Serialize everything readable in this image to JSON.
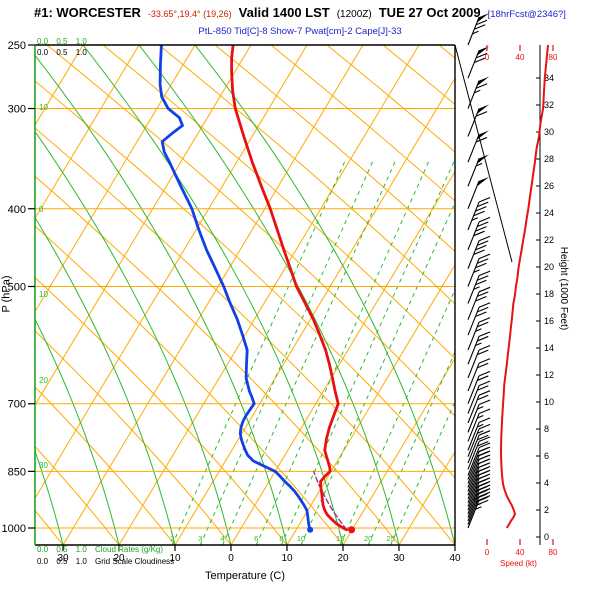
{
  "header": {
    "station": "#1: WORCESTER",
    "coords": "-33.65°,19.4° (19,26)",
    "valid": "Valid 1400 LST",
    "valid_z": "(1200Z)",
    "date": "TUE 27 Oct 2009",
    "fcst_tag": "[18hrFcst@2346?]",
    "indices": "PtL-850  Tid[C]-8  Show-7  Pwat[cm]-2  Cape[J]-33"
  },
  "labels": {
    "pressure_axis": "P (hPa)",
    "temperature_axis": "Temperature (C)",
    "height_axis": "Height (1000 Feet)",
    "speed_axis": "Speed (kt)",
    "cloud_scale": "0.0 0.5 1.0",
    "grid_scale": "0.0 0.5 1.0",
    "cloud_rates_legend": "Cloud Rates (g/Kg)",
    "grid_scale_legend": "Grid Scale Cloudiness"
  },
  "colors": {
    "isotherm": "#ffaa00",
    "adiabat_dry": "#ffaa00",
    "adiabat_moist": "#2db82d",
    "mixing_ratio": "#2db82d",
    "temperature": "#e81010",
    "dewpoint": "#1040e8",
    "parcel": "#993399",
    "wind": "#000000",
    "speed_curve": "#e81010",
    "left_spine": "#1fa41f"
  },
  "axes": {
    "pressure_ticks": [
      250,
      300,
      400,
      500,
      700,
      850,
      1000
    ],
    "pressure_range": [
      250,
      1050
    ],
    "temperature_ticks": [
      -30,
      -20,
      -10,
      0,
      10,
      20,
      30,
      40
    ],
    "temperature_tick_labels": [
      "30",
      "20",
      "10",
      "0",
      "10",
      "20",
      "30",
      "40"
    ],
    "height_ticks": [
      0,
      2,
      4,
      6,
      8,
      10,
      12,
      14,
      16,
      18,
      20,
      22,
      24,
      26,
      28,
      30,
      32,
      34
    ],
    "speed_ticks": [
      0,
      40,
      80
    ],
    "moist_adiabat_edge_labels": [
      "10",
      "0",
      "10",
      "20",
      "30"
    ],
    "mixing_ratio_labels": [
      {
        "label": "2",
        "t": -10.5
      },
      {
        "label": "3",
        "t": -5.5
      },
      {
        "label": "4",
        "t": -1.5
      },
      {
        "label": "6",
        "t": 4.5
      },
      {
        "label": "8",
        "t": 9
      },
      {
        "label": "10",
        "t": 12.5
      },
      {
        "label": "15",
        "t": 19.5
      },
      {
        "label": "20",
        "t": 24.5
      },
      {
        "label": "25",
        "t": 28.5
      }
    ]
  },
  "chart_data": {
    "type": "line",
    "title": "Skew-T / Log-P sounding, Worcester, valid 1400 LST (1200Z) TUE 27 Oct 2009",
    "xlabel": "Temperature (C)",
    "ylabel": "P (hPa)",
    "pressure_range": [
      250,
      1050
    ],
    "series": [
      {
        "name": "temperature_C",
        "points": [
          [
            1005,
            19
          ],
          [
            1000,
            18.2
          ],
          [
            988,
            16.6
          ],
          [
            975,
            15.2
          ],
          [
            962,
            13.9
          ],
          [
            950,
            13
          ],
          [
            937,
            12.2
          ],
          [
            925,
            11.6
          ],
          [
            912,
            11
          ],
          [
            900,
            10.4
          ],
          [
            887,
            9.7
          ],
          [
            875,
            9.2
          ],
          [
            862,
            9.4
          ],
          [
            850,
            9.8
          ],
          [
            840,
            9.3
          ],
          [
            825,
            8.3
          ],
          [
            812,
            7.4
          ],
          [
            800,
            6.6
          ],
          [
            775,
            5.7
          ],
          [
            750,
            5
          ],
          [
            725,
            4.5
          ],
          [
            700,
            4
          ],
          [
            675,
            2.1
          ],
          [
            650,
            0.2
          ],
          [
            625,
            -1.8
          ],
          [
            600,
            -4
          ],
          [
            575,
            -6.6
          ],
          [
            550,
            -9.4
          ],
          [
            525,
            -12.6
          ],
          [
            500,
            -16
          ],
          [
            475,
            -19
          ],
          [
            450,
            -22.2
          ],
          [
            425,
            -25.5
          ],
          [
            400,
            -29
          ],
          [
            375,
            -33
          ],
          [
            350,
            -37.2
          ],
          [
            325,
            -41.5
          ],
          [
            300,
            -46
          ],
          [
            285,
            -48.4
          ],
          [
            270,
            -50.6
          ],
          [
            260,
            -52
          ],
          [
            250,
            -53.2
          ]
        ]
      },
      {
        "name": "dewpoint_C",
        "points": [
          [
            1005,
            12.5
          ],
          [
            1000,
            12.2
          ],
          [
            988,
            11.6
          ],
          [
            975,
            11
          ],
          [
            962,
            10.4
          ],
          [
            950,
            9.8
          ],
          [
            937,
            8.8
          ],
          [
            925,
            7.8
          ],
          [
            912,
            6.7
          ],
          [
            900,
            5.6
          ],
          [
            887,
            4.2
          ],
          [
            875,
            2.8
          ],
          [
            862,
            1.4
          ],
          [
            850,
            0
          ],
          [
            837,
            -2.6
          ],
          [
            825,
            -5
          ],
          [
            812,
            -6.6
          ],
          [
            800,
            -7.6
          ],
          [
            787,
            -8.6
          ],
          [
            775,
            -9.5
          ],
          [
            762,
            -10.3
          ],
          [
            750,
            -10.8
          ],
          [
            737,
            -11.1
          ],
          [
            725,
            -11.2
          ],
          [
            712,
            -11.1
          ],
          [
            700,
            -11
          ],
          [
            687,
            -12.1
          ],
          [
            675,
            -13.2
          ],
          [
            650,
            -15.2
          ],
          [
            625,
            -16.6
          ],
          [
            600,
            -18
          ],
          [
            575,
            -20.4
          ],
          [
            550,
            -23
          ],
          [
            525,
            -26
          ],
          [
            500,
            -29
          ],
          [
            475,
            -32.4
          ],
          [
            450,
            -36
          ],
          [
            425,
            -39.5
          ],
          [
            400,
            -43
          ],
          [
            375,
            -47.4
          ],
          [
            350,
            -52
          ],
          [
            340,
            -54
          ],
          [
            330,
            -55.5
          ],
          [
            322,
            -54.6
          ],
          [
            315,
            -53.6
          ],
          [
            308,
            -55
          ],
          [
            300,
            -58
          ],
          [
            290,
            -60.4
          ],
          [
            280,
            -62
          ],
          [
            265,
            -64
          ],
          [
            250,
            -66
          ]
        ]
      },
      {
        "name": "parcel_C",
        "points": [
          [
            1005,
            19
          ],
          [
            980,
            16.9
          ],
          [
            955,
            14.8
          ],
          [
            930,
            12.8
          ],
          [
            905,
            10.9
          ],
          [
            880,
            9
          ],
          [
            855,
            7.2
          ],
          [
            850,
            6.9
          ]
        ]
      },
      {
        "name": "wind_speed_kt",
        "points": [
          [
            250,
            74
          ],
          [
            262,
            72
          ],
          [
            275,
            70
          ],
          [
            287,
            69
          ],
          [
            300,
            68
          ],
          [
            312,
            65
          ],
          [
            325,
            63
          ],
          [
            337,
            60
          ],
          [
            350,
            58
          ],
          [
            362,
            56
          ],
          [
            375,
            54
          ],
          [
            387,
            52
          ],
          [
            400,
            50
          ],
          [
            412,
            48
          ],
          [
            425,
            46
          ],
          [
            437,
            44
          ],
          [
            450,
            42
          ],
          [
            462,
            40
          ],
          [
            475,
            38
          ],
          [
            487,
            37
          ],
          [
            500,
            35
          ],
          [
            512,
            34
          ],
          [
            525,
            32
          ],
          [
            537,
            31
          ],
          [
            550,
            30
          ],
          [
            562,
            29
          ],
          [
            575,
            28
          ],
          [
            587,
            27
          ],
          [
            600,
            26
          ],
          [
            612,
            25
          ],
          [
            625,
            24
          ],
          [
            637,
            23
          ],
          [
            650,
            22
          ],
          [
            662,
            21
          ],
          [
            675,
            20.5
          ],
          [
            700,
            19.5
          ],
          [
            725,
            18.5
          ],
          [
            750,
            17.8
          ],
          [
            775,
            17.2
          ],
          [
            800,
            17
          ],
          [
            825,
            17.2
          ],
          [
            850,
            17.8
          ],
          [
            875,
            19
          ],
          [
            887,
            20
          ],
          [
            900,
            22
          ],
          [
            912,
            24
          ],
          [
            925,
            27
          ],
          [
            937,
            30
          ],
          [
            950,
            32.5
          ],
          [
            960,
            34
          ],
          [
            970,
            32
          ],
          [
            980,
            29
          ],
          [
            990,
            26.5
          ],
          [
            1000,
            24
          ]
        ]
      }
    ],
    "wind_barbs": {
      "dir_deg": 300,
      "levels": [
        [
          250,
          75
        ],
        [
          275,
          70
        ],
        [
          300,
          65
        ],
        [
          325,
          62
        ],
        [
          350,
          58
        ],
        [
          375,
          54
        ],
        [
          400,
          50
        ],
        [
          425,
          46
        ],
        [
          450,
          42
        ],
        [
          475,
          39
        ],
        [
          500,
          36
        ],
        [
          525,
          33
        ],
        [
          550,
          30
        ],
        [
          575,
          28
        ],
        [
          600,
          26
        ],
        [
          625,
          24
        ],
        [
          650,
          22
        ],
        [
          675,
          21
        ],
        [
          700,
          20
        ],
        [
          720,
          19
        ],
        [
          740,
          18
        ],
        [
          760,
          17
        ],
        [
          780,
          17
        ],
        [
          800,
          17
        ],
        [
          815,
          17
        ],
        [
          830,
          18
        ],
        [
          845,
          18
        ],
        [
          860,
          19
        ],
        [
          870,
          20
        ],
        [
          880,
          21
        ],
        [
          890,
          22
        ],
        [
          900,
          23
        ],
        [
          910,
          25
        ],
        [
          920,
          26
        ],
        [
          930,
          28
        ],
        [
          940,
          30
        ],
        [
          950,
          32
        ],
        [
          960,
          34
        ],
        [
          970,
          31
        ],
        [
          980,
          28
        ],
        [
          990,
          26
        ],
        [
          1000,
          23
        ]
      ]
    }
  }
}
